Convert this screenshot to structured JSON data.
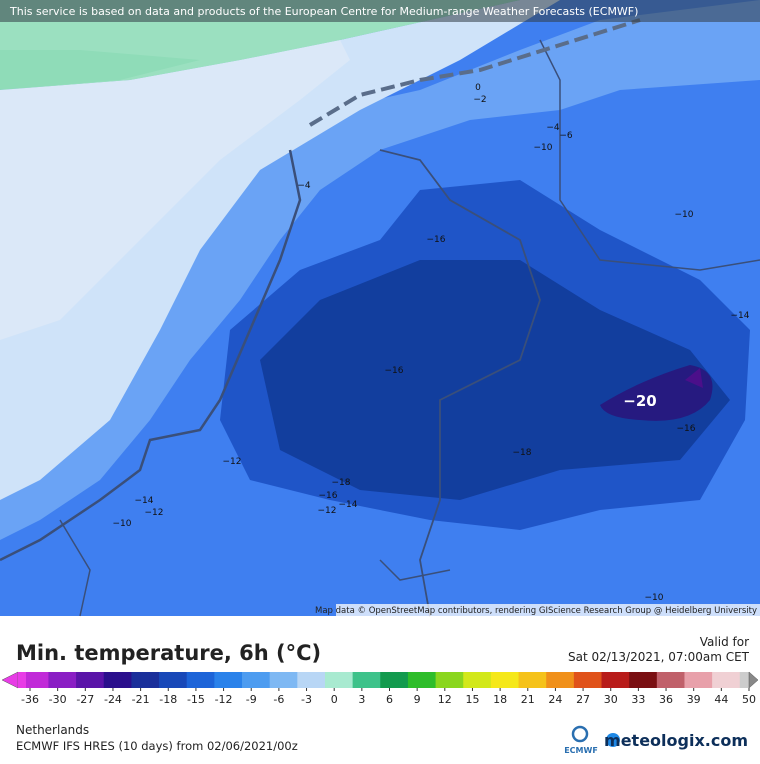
{
  "header": {
    "notice": "This service is based on data and products of the European Centre for Medium-range Weather Forecasts (ECMWF)"
  },
  "map": {
    "attribution": "Map data © OpenStreetMap contributors, rendering GIScience Research Group @ Heidelberg University",
    "contour_labels": [
      "0",
      "−2",
      "−4",
      "−6",
      "−10",
      "−4",
      "−16",
      "−10",
      "−14",
      "−16",
      "−20",
      "−16",
      "−18",
      "−12",
      "−18",
      "−16",
      "−14",
      "−12",
      "−14",
      "−12",
      "−10",
      "−10"
    ]
  },
  "panel": {
    "title": "Min. temperature, 6h (°C)",
    "valid_label": "Valid for",
    "valid_time": "Sat 02/13/2021, 07:00am CET",
    "scale_ticks": [
      -36,
      -30,
      -27,
      -24,
      -21,
      -18,
      -15,
      -12,
      -9,
      -6,
      -3,
      0,
      3,
      6,
      9,
      12,
      15,
      18,
      21,
      24,
      27,
      30,
      33,
      36,
      39,
      44,
      50
    ],
    "region": "Netherlands",
    "model_run": "ECMWF IFS HRES (10 days) from 02/06/2021/00z",
    "logo_ecmwf": "ECMWF",
    "logo_brand": "meteologix.com"
  }
}
